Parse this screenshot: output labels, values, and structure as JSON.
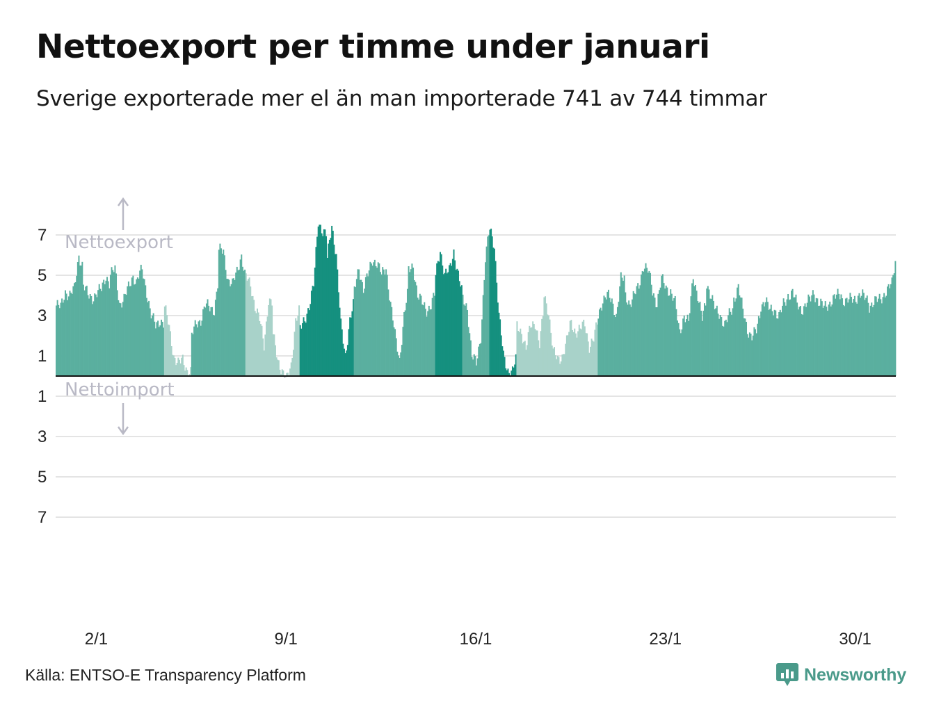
{
  "title": "Nettoexport per timme under januari",
  "subtitle": "Sverige exporterade mer el än man importerade 741 av 744 timmar",
  "source": "Källa: ENTSO-E Transparency Platform",
  "brand": {
    "name": "Newsworthy",
    "icon": "newsworthy-logo-icon",
    "color": "#4a9a8a"
  },
  "colors": {
    "dark": "#15907f",
    "mid": "#5aaf9f",
    "light": "#a8d2c9",
    "negative": "#cfd0d8",
    "grid": "#e4e4e4",
    "annotation": "#b9b9c5"
  },
  "chart_data": {
    "type": "bar",
    "title": "Nettoexport per timme under januari",
    "subtitle": "Sverige exporterade mer el än man importerade 741 av 744 timmar",
    "ylim": [
      -8,
      8
    ],
    "yticks_export": [
      "7",
      "5",
      "3",
      "1"
    ],
    "yticks_import": [
      "1",
      "3",
      "5",
      "7"
    ],
    "xticks": [
      "2/1",
      "9/1",
      "16/1",
      "23/1",
      "30/1"
    ],
    "annotations": {
      "export": "Nettoexport",
      "import": "Nettoimport"
    },
    "grid": true,
    "hours_total": 744,
    "hours_export": 741,
    "x": "hours 0–743 of January (hourly)",
    "daily_keypoints": [
      [
        [
          0,
          3.5
        ],
        [
          4,
          3.4
        ],
        [
          8,
          4.2
        ],
        [
          12,
          4.0
        ],
        [
          16,
          4.3
        ],
        [
          20,
          6.0
        ],
        [
          23,
          5.5
        ]
      ],
      [
        [
          0,
          4.5
        ],
        [
          4,
          4.0
        ],
        [
          8,
          3.9
        ],
        [
          12,
          4.1
        ],
        [
          16,
          4.3
        ],
        [
          20,
          5.0
        ],
        [
          23,
          4.6
        ]
      ],
      [
        [
          0,
          5.0
        ],
        [
          4,
          5.3
        ],
        [
          8,
          3.6
        ],
        [
          12,
          3.8
        ],
        [
          16,
          4.4
        ],
        [
          20,
          5.0
        ],
        [
          23,
          4.6
        ]
      ],
      [
        [
          0,
          4.8
        ],
        [
          4,
          5.3
        ],
        [
          8,
          4.2
        ],
        [
          12,
          3.0
        ],
        [
          16,
          2.5
        ],
        [
          20,
          2.8
        ],
        [
          23,
          2.6
        ]
      ],
      [
        [
          0,
          3.4
        ],
        [
          4,
          2.4
        ],
        [
          8,
          1.0
        ],
        [
          12,
          0.6
        ],
        [
          16,
          0.8
        ],
        [
          20,
          0.3
        ],
        [
          23,
          0.2
        ]
      ],
      [
        [
          0,
          2.0
        ],
        [
          4,
          2.6
        ],
        [
          8,
          2.8
        ],
        [
          12,
          3.5
        ],
        [
          16,
          3.4
        ],
        [
          20,
          3.3
        ],
        [
          23,
          4.5
        ]
      ],
      [
        [
          0,
          6.2
        ],
        [
          4,
          6.2
        ],
        [
          8,
          4.8
        ],
        [
          12,
          4.5
        ],
        [
          16,
          5.2
        ],
        [
          20,
          6.0
        ],
        [
          23,
          5.0
        ]
      ],
      [
        [
          0,
          4.9
        ],
        [
          4,
          4.5
        ],
        [
          8,
          3.5
        ],
        [
          12,
          2.8
        ],
        [
          16,
          1.5
        ],
        [
          20,
          3.8
        ],
        [
          23,
          3.6
        ]
      ],
      [
        [
          0,
          2.0
        ],
        [
          4,
          0.8
        ],
        [
          8,
          0.3
        ],
        [
          12,
          -0.2
        ],
        [
          16,
          0.5
        ],
        [
          20,
          2.8
        ],
        [
          23,
          3.2
        ]
      ],
      [
        [
          0,
          2.3
        ],
        [
          4,
          2.8
        ],
        [
          8,
          3.5
        ],
        [
          12,
          4.5
        ],
        [
          16,
          7.7
        ],
        [
          20,
          7.2
        ],
        [
          23,
          7.0
        ]
      ],
      [
        [
          0,
          5.8
        ],
        [
          4,
          7.5
        ],
        [
          8,
          6.0
        ],
        [
          12,
          2.5
        ],
        [
          16,
          1.0
        ],
        [
          20,
          2.8
        ],
        [
          23,
          3.5
        ]
      ],
      [
        [
          0,
          4.2
        ],
        [
          4,
          5.4
        ],
        [
          8,
          4.3
        ],
        [
          12,
          5.0
        ],
        [
          16,
          5.8
        ],
        [
          20,
          5.6
        ],
        [
          23,
          5.2
        ]
      ],
      [
        [
          0,
          5.0
        ],
        [
          4,
          5.4
        ],
        [
          8,
          3.6
        ],
        [
          12,
          2.0
        ],
        [
          16,
          0.8
        ],
        [
          20,
          3.0
        ],
        [
          23,
          4.0
        ]
      ],
      [
        [
          0,
          5.2
        ],
        [
          4,
          5.5
        ],
        [
          8,
          4.0
        ],
        [
          12,
          3.6
        ],
        [
          16,
          3.3
        ],
        [
          20,
          3.5
        ],
        [
          23,
          4.0
        ]
      ],
      [
        [
          0,
          5.0
        ],
        [
          4,
          6.3
        ],
        [
          8,
          5.0
        ],
        [
          12,
          5.2
        ],
        [
          16,
          6.2
        ],
        [
          20,
          5.0
        ],
        [
          23,
          4.2
        ]
      ],
      [
        [
          0,
          3.8
        ],
        [
          4,
          3.4
        ],
        [
          8,
          1.0
        ],
        [
          12,
          0.6
        ],
        [
          16,
          2.0
        ],
        [
          20,
          5.8
        ],
        [
          23,
          7.0
        ]
      ],
      [
        [
          0,
          7.3
        ],
        [
          4,
          6.5
        ],
        [
          8,
          3.0
        ],
        [
          12,
          1.0
        ],
        [
          16,
          0.3
        ],
        [
          20,
          0.2
        ],
        [
          23,
          0.8
        ]
      ],
      [
        [
          0,
          2.5
        ],
        [
          4,
          2.2
        ],
        [
          8,
          1.3
        ],
        [
          12,
          2.5
        ],
        [
          16,
          2.7
        ],
        [
          20,
          1.5
        ],
        [
          23,
          3.0
        ]
      ],
      [
        [
          0,
          4.0
        ],
        [
          4,
          3.2
        ],
        [
          8,
          1.2
        ],
        [
          12,
          0.8
        ],
        [
          16,
          1.0
        ],
        [
          20,
          1.7
        ],
        [
          23,
          2.5
        ]
      ],
      [
        [
          0,
          2.6
        ],
        [
          4,
          2.2
        ],
        [
          8,
          2.3
        ],
        [
          12,
          2.6
        ],
        [
          16,
          1.5
        ],
        [
          20,
          1.8
        ],
        [
          23,
          2.6
        ]
      ],
      [
        [
          0,
          3.0
        ],
        [
          4,
          3.8
        ],
        [
          8,
          4.0
        ],
        [
          12,
          3.7
        ],
        [
          16,
          3.0
        ],
        [
          20,
          4.8
        ],
        [
          23,
          4.8
        ]
      ],
      [
        [
          0,
          4.0
        ],
        [
          4,
          3.6
        ],
        [
          8,
          4.0
        ],
        [
          12,
          4.5
        ],
        [
          16,
          5.5
        ],
        [
          20,
          5.2
        ],
        [
          23,
          4.6
        ]
      ],
      [
        [
          0,
          4.2
        ],
        [
          4,
          3.6
        ],
        [
          8,
          4.8
        ],
        [
          12,
          4.4
        ],
        [
          16,
          4.2
        ],
        [
          20,
          3.6
        ],
        [
          23,
          2.5
        ]
      ],
      [
        [
          0,
          2.2
        ],
        [
          4,
          3.0
        ],
        [
          8,
          2.6
        ],
        [
          12,
          5.0
        ],
        [
          16,
          4.0
        ],
        [
          20,
          2.8
        ],
        [
          23,
          3.6
        ]
      ],
      [
        [
          0,
          4.6
        ],
        [
          4,
          4.0
        ],
        [
          8,
          3.2
        ],
        [
          12,
          3.0
        ],
        [
          16,
          2.6
        ],
        [
          20,
          3.0
        ],
        [
          23,
          3.3
        ]
      ],
      [
        [
          0,
          3.8
        ],
        [
          4,
          4.5
        ],
        [
          8,
          3.2
        ],
        [
          12,
          2.3
        ],
        [
          16,
          2.0
        ],
        [
          20,
          2.2
        ],
        [
          23,
          3.0
        ]
      ],
      [
        [
          0,
          3.5
        ],
        [
          4,
          3.8
        ],
        [
          8,
          3.2
        ],
        [
          12,
          3.3
        ],
        [
          16,
          3.0
        ],
        [
          20,
          3.5
        ],
        [
          23,
          3.8
        ]
      ],
      [
        [
          0,
          4.0
        ],
        [
          4,
          4.2
        ],
        [
          8,
          3.5
        ],
        [
          12,
          3.3
        ],
        [
          16,
          3.6
        ],
        [
          20,
          3.8
        ],
        [
          23,
          4.2
        ]
      ],
      [
        [
          0,
          4.0
        ],
        [
          4,
          3.6
        ],
        [
          8,
          3.4
        ],
        [
          12,
          3.6
        ],
        [
          16,
          3.8
        ],
        [
          20,
          4.0
        ],
        [
          23,
          4.1
        ]
      ],
      [
        [
          0,
          3.8
        ],
        [
          4,
          3.7
        ],
        [
          8,
          3.8
        ],
        [
          12,
          3.9
        ],
        [
          16,
          4.0
        ],
        [
          20,
          3.9
        ],
        [
          23,
          3.8
        ]
      ],
      [
        [
          0,
          3.5
        ],
        [
          4,
          3.6
        ],
        [
          8,
          3.8
        ],
        [
          12,
          4.0
        ],
        [
          16,
          4.2
        ],
        [
          20,
          4.6
        ],
        [
          23,
          5.8
        ]
      ]
    ],
    "daily_shade": [
      "mid",
      "mid",
      "mid",
      "mid",
      "light",
      "mid",
      "mid",
      "light",
      "light",
      "dark",
      "dark",
      "mid",
      "mid",
      "mid",
      "dark",
      "mid",
      "dark",
      "light",
      "light",
      "light",
      "mid",
      "mid",
      "mid",
      "mid",
      "mid",
      "mid",
      "mid",
      "mid",
      "mid",
      "mid",
      "mid"
    ]
  }
}
